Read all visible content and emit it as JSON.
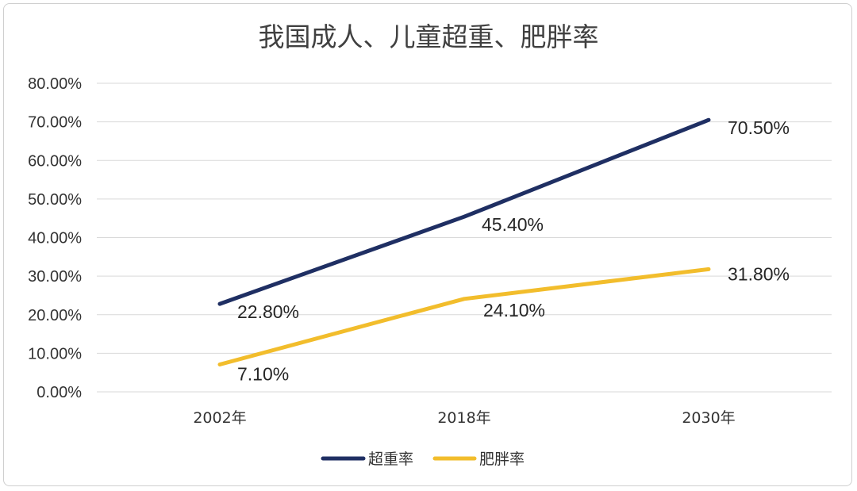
{
  "chart_data": {
    "type": "line",
    "title": "我国成人、儿童超重、肥胖率",
    "categories": [
      "2002年",
      "2018年",
      "2030年"
    ],
    "series": [
      {
        "name": "超重率",
        "values": [
          22.8,
          45.4,
          70.5
        ],
        "labels": [
          "22.80%",
          "45.40%",
          "70.50%"
        ],
        "color": "#1f2f63"
      },
      {
        "name": "肥胖率",
        "values": [
          7.1,
          24.1,
          31.8
        ],
        "labels": [
          "7.10%",
          "24.10%",
          "31.80%"
        ],
        "color": "#f2bd2c"
      }
    ],
    "ylim": [
      0,
      80
    ],
    "yticks": [
      0,
      10,
      20,
      30,
      40,
      50,
      60,
      70,
      80
    ],
    "ytick_labels": [
      "0.00%",
      "10.00%",
      "20.00%",
      "30.00%",
      "40.00%",
      "50.00%",
      "60.00%",
      "70.00%",
      "80.00%"
    ],
    "grid": true,
    "legend_position": "bottom"
  }
}
